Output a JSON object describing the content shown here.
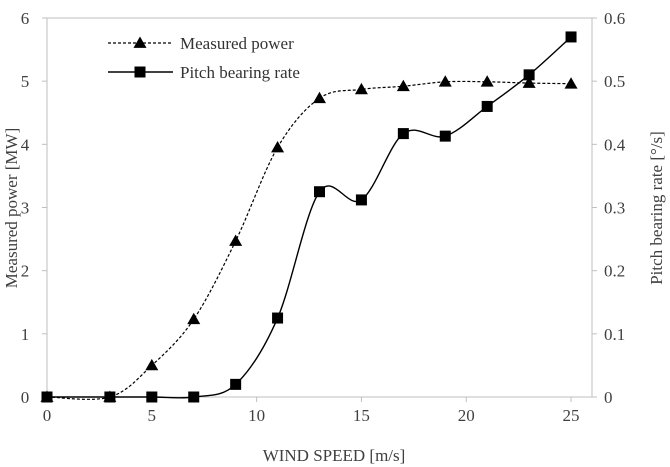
{
  "chart_data": {
    "type": "line",
    "xlabel": "WIND SPEED [m/s]",
    "ylabel_left": "Measured power [MW]",
    "ylabel_right": "Pitch bearing rate [°/s]",
    "xlim": [
      0,
      26
    ],
    "xticks": [
      0,
      5,
      10,
      15,
      20,
      25
    ],
    "ylim_left": [
      0,
      6
    ],
    "yticks_left": [
      0,
      1,
      2,
      3,
      4,
      5,
      6
    ],
    "ylim_right": [
      0,
      0.6
    ],
    "yticks_right": [
      "0",
      "0.1",
      "0.2",
      "0.3",
      "0.4",
      "0.5",
      "0.6"
    ],
    "grid": false,
    "legend_position": "top-left",
    "series": [
      {
        "name": "Measured power",
        "axis": "left",
        "line_style": "dashed",
        "marker": "triangle",
        "color": "#000000",
        "x": [
          0,
          3,
          5,
          7,
          9,
          11,
          13,
          15,
          17,
          19,
          21,
          23,
          25
        ],
        "y": [
          0,
          0,
          0.5,
          1.23,
          2.47,
          3.95,
          4.73,
          4.87,
          4.92,
          4.99,
          4.99,
          4.97,
          4.96
        ]
      },
      {
        "name": "Pitch bearing rate",
        "axis": "right",
        "line_style": "solid",
        "marker": "square",
        "color": "#000000",
        "x": [
          0,
          3,
          5,
          7,
          9,
          11,
          13,
          15,
          17,
          19,
          21,
          23,
          25
        ],
        "y": [
          0,
          0,
          0,
          0,
          0.02,
          0.125,
          0.325,
          0.312,
          0.417,
          0.413,
          0.46,
          0.51,
          0.57
        ]
      }
    ]
  }
}
